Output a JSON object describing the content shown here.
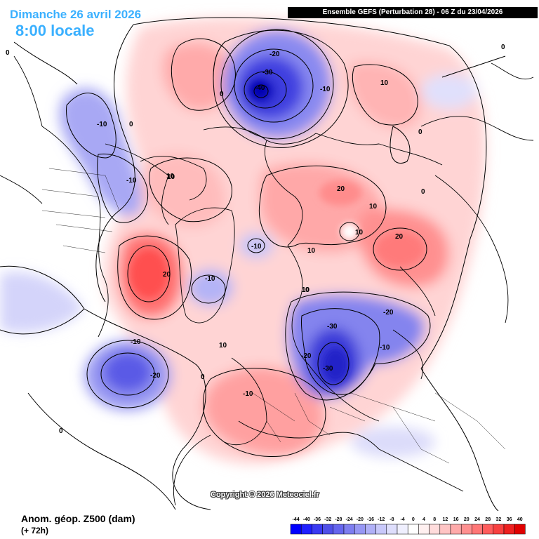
{
  "header": {
    "date": "Dimanche 26 avril 2026",
    "time": "8:00 locale",
    "run_info": "Ensemble GEFS  (Perturbation 28)  -  06 Z du 23/04/2026"
  },
  "footer": {
    "variable": "Anom. géop. Z500 (dam)",
    "lead_time": "(+ 72h)",
    "copyright": "Copyright © 2026 Meteociel.fr"
  },
  "legend": {
    "ticks": [
      "-44",
      "-40",
      "-36",
      "-32",
      "-28",
      "-24",
      "-20",
      "-16",
      "-12",
      "-8",
      "-4",
      "0",
      "4",
      "8",
      "12",
      "16",
      "20",
      "24",
      "28",
      "32",
      "36",
      "40"
    ],
    "colors": [
      "#0000ff",
      "#1f1fff",
      "#3a3af2",
      "#5050e8",
      "#6666ee",
      "#7e7ef0",
      "#9797f4",
      "#b0b0f7",
      "#c8c8fa",
      "#dedefc",
      "#efeffe",
      "#ffffff",
      "#fff0f0",
      "#ffdcdc",
      "#ffc4c4",
      "#ffaaaa",
      "#ff9090",
      "#ff7676",
      "#ff5c5c",
      "#f84040",
      "#ee2020",
      "#e00000"
    ]
  },
  "contour_labels": [
    {
      "id": "c1",
      "text": "-40"
    },
    {
      "id": "c2",
      "text": "-30"
    },
    {
      "id": "c3",
      "text": "-20"
    },
    {
      "id": "c4",
      "text": "-10"
    },
    {
      "id": "c5",
      "text": "0"
    },
    {
      "id": "c6",
      "text": "10"
    },
    {
      "id": "c7",
      "text": "-10"
    },
    {
      "id": "c8",
      "text": "0"
    },
    {
      "id": "c9",
      "text": "-10"
    },
    {
      "id": "c10",
      "text": "10"
    },
    {
      "id": "c11",
      "text": "20"
    },
    {
      "id": "c12",
      "text": "10"
    },
    {
      "id": "c13",
      "text": "10"
    },
    {
      "id": "c14",
      "text": "20"
    },
    {
      "id": "c15",
      "text": "10"
    },
    {
      "id": "c16",
      "text": "10"
    },
    {
      "id": "c17",
      "text": "-10"
    },
    {
      "id": "c18",
      "text": "20"
    },
    {
      "id": "c19",
      "text": "-10"
    },
    {
      "id": "c20",
      "text": "0"
    },
    {
      "id": "c21",
      "text": "-30"
    },
    {
      "id": "c22",
      "text": "-20"
    },
    {
      "id": "c23",
      "text": "-10"
    },
    {
      "id": "c24",
      "text": "-20"
    },
    {
      "id": "c25",
      "text": "-30"
    },
    {
      "id": "c26",
      "text": "10"
    },
    {
      "id": "c27",
      "text": "-10"
    },
    {
      "id": "c28",
      "text": "-20"
    },
    {
      "id": "c29",
      "text": "0"
    },
    {
      "id": "c30",
      "text": "-10"
    },
    {
      "id": "c31",
      "text": "0"
    },
    {
      "id": "c32",
      "text": "0"
    },
    {
      "id": "c33",
      "text": "0"
    },
    {
      "id": "c34",
      "text": "0"
    },
    {
      "id": "c35",
      "text": "10"
    },
    {
      "id": "c36",
      "text": "0"
    }
  ]
}
